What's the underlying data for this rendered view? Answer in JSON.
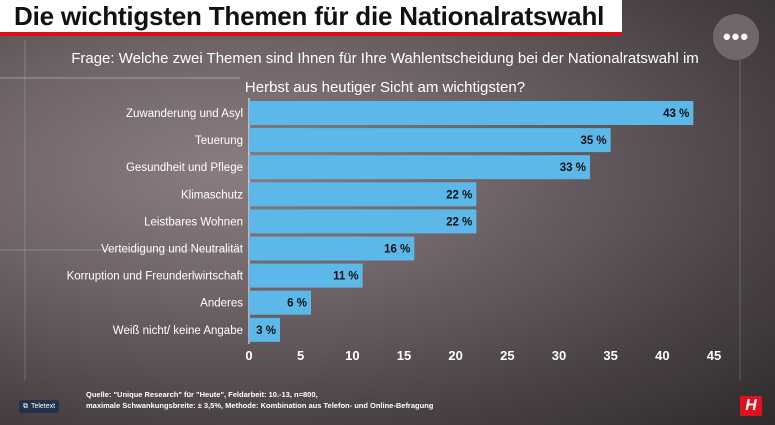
{
  "title": "Die wichtigsten Themen für die Nationalratswahl",
  "question_line1": "Frage: Welche zwei Themen sind Ihnen für Ihre Wahlentscheidung bei der Nationalratswahl im",
  "question_line2": "Herbst aus heutiger Sicht am wichtigsten?",
  "more_button": "•••",
  "teletext_label": "Teletext",
  "teletext_icon": "teletext-icon",
  "source_line1": "Quelle: \"Unique Research\" für \"Heute\", Feldarbeit: 10.-13, n=800,",
  "source_line2": "maximale Schwankungsbreite: ± 3,5%, Methode: Kombination aus Telefon- und Online-Befragung",
  "logo_text": "H",
  "colors": {
    "bar": "#5cb8e8",
    "accent": "#d8101a",
    "logo": "#e3101c"
  },
  "chart_data": {
    "type": "bar",
    "orientation": "horizontal",
    "categories": [
      "Zuwanderung und Asyl",
      "Teuerung",
      "Gesundheit und Pflege",
      "Klimaschutz",
      "Leistbares Wohnen",
      "Verteidigung und Neutralität",
      "Korruption und Freunderlwirtschaft",
      "Anderes",
      "Weiß nicht/ keine Angabe"
    ],
    "values": [
      43,
      35,
      33,
      22,
      22,
      16,
      11,
      6,
      3
    ],
    "value_labels": [
      "43 %",
      "35 %",
      "33 %",
      "22 %",
      "22 %",
      "16 %",
      "11 %",
      "6 %",
      "3 %"
    ],
    "xlim": [
      0,
      45
    ],
    "xticks": [
      0,
      5,
      10,
      15,
      20,
      25,
      30,
      35,
      40,
      45
    ],
    "grid": false,
    "legend": "none"
  }
}
